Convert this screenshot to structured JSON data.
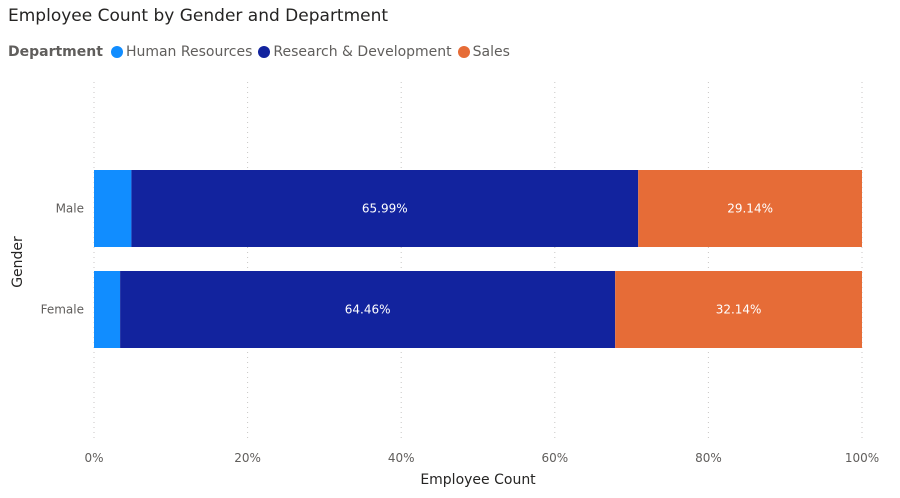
{
  "colors": {
    "hr": "#118DFF",
    "rd": "#12239E",
    "sales": "#E66C37"
  },
  "chart_data": {
    "type": "bar",
    "orientation": "horizontal",
    "stacked": "100%",
    "title": "Employee Count by Gender and Department",
    "legend_title": "Department",
    "legend_position": "top-left",
    "xlabel": "Employee Count",
    "ylabel": "Gender",
    "xlim": [
      0,
      100
    ],
    "x_ticks": [
      "0%",
      "20%",
      "40%",
      "60%",
      "80%",
      "100%"
    ],
    "grid": "vertical-dotted",
    "categories": [
      "Male",
      "Female"
    ],
    "series": [
      {
        "name": "Human Resources",
        "color": "#118DFF",
        "values": [
          4.87,
          3.4
        ],
        "labels": [
          "",
          ""
        ]
      },
      {
        "name": "Research & Development",
        "color": "#12239E",
        "values": [
          65.99,
          64.46
        ],
        "labels": [
          "65.99%",
          "64.46%"
        ]
      },
      {
        "name": "Sales",
        "color": "#E66C37",
        "values": [
          29.14,
          32.14
        ],
        "labels": [
          "29.14%",
          "32.14%"
        ]
      }
    ]
  }
}
